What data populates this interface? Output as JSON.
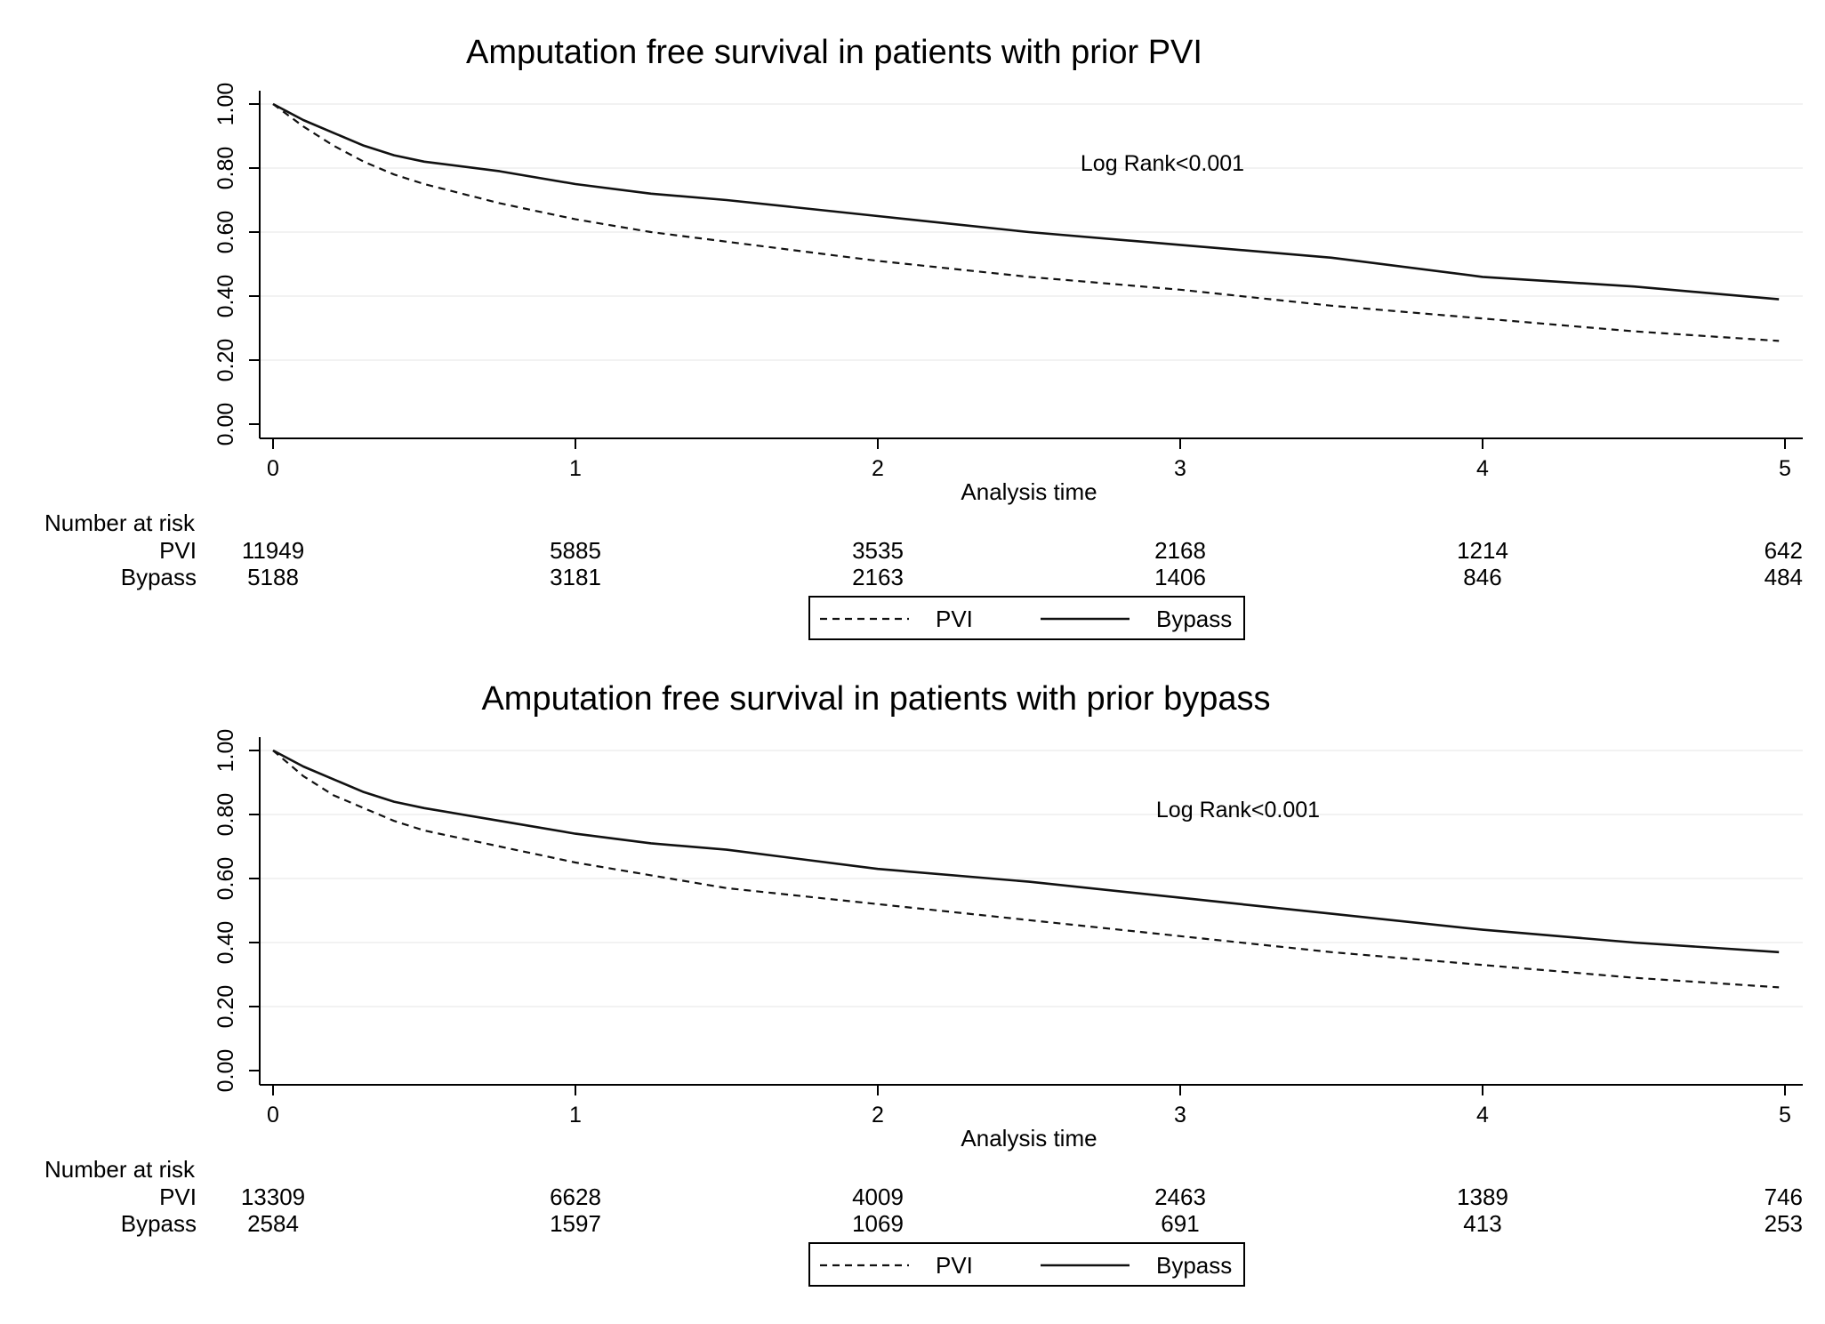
{
  "chart_data": [
    {
      "type": "line",
      "title": "Amputation free survival in patients with prior PVI",
      "xlabel": "Analysis time",
      "ylabel": "",
      "xlim": [
        0,
        5
      ],
      "ylim": [
        0,
        1
      ],
      "x_ticks": [
        "0",
        "1",
        "2",
        "3",
        "4",
        "5"
      ],
      "y_ticks": [
        "0.00",
        "0.20",
        "0.40",
        "0.60",
        "0.80",
        "1.00"
      ],
      "grid": true,
      "annotation": "Log Rank<0.001",
      "series": [
        {
          "name": "PVI",
          "style": "dashed",
          "x": [
            0,
            0.1,
            0.2,
            0.3,
            0.4,
            0.5,
            0.75,
            1,
            1.25,
            1.5,
            2,
            2.5,
            3,
            3.5,
            4,
            4.5,
            4.98
          ],
          "y": [
            1.0,
            0.93,
            0.87,
            0.82,
            0.78,
            0.75,
            0.69,
            0.64,
            0.6,
            0.57,
            0.51,
            0.46,
            0.42,
            0.37,
            0.33,
            0.29,
            0.26
          ]
        },
        {
          "name": "Bypass",
          "style": "solid",
          "x": [
            0,
            0.1,
            0.2,
            0.3,
            0.4,
            0.5,
            0.75,
            1,
            1.25,
            1.5,
            2,
            2.5,
            3,
            3.5,
            4,
            4.5,
            4.98
          ],
          "y": [
            1.0,
            0.95,
            0.91,
            0.87,
            0.84,
            0.82,
            0.79,
            0.75,
            0.72,
            0.7,
            0.65,
            0.6,
            0.56,
            0.52,
            0.46,
            0.43,
            0.39
          ]
        }
      ],
      "risk_table": {
        "header": "Number at risk",
        "rows": [
          {
            "label": "PVI",
            "values": [
              "11949",
              "5885",
              "3535",
              "2168",
              "1214",
              "642"
            ]
          },
          {
            "label": "Bypass",
            "values": [
              "5188",
              "3181",
              "2163",
              "1406",
              "846",
              "484"
            ]
          }
        ]
      },
      "legend": {
        "position": "bottom",
        "items": [
          "PVI",
          "Bypass"
        ]
      }
    },
    {
      "type": "line",
      "title": "Amputation free survival in patients with prior bypass",
      "xlabel": "Analysis time",
      "ylabel": "",
      "xlim": [
        0,
        5
      ],
      "ylim": [
        0,
        1
      ],
      "x_ticks": [
        "0",
        "1",
        "2",
        "3",
        "4",
        "5"
      ],
      "y_ticks": [
        "0.00",
        "0.20",
        "0.40",
        "0.60",
        "0.80",
        "1.00"
      ],
      "grid": true,
      "annotation": "Log Rank<0.001",
      "series": [
        {
          "name": "PVI",
          "style": "dashed",
          "x": [
            0,
            0.1,
            0.2,
            0.3,
            0.4,
            0.5,
            0.75,
            1,
            1.25,
            1.5,
            2,
            2.5,
            3,
            3.5,
            4,
            4.5,
            4.98
          ],
          "y": [
            1.0,
            0.92,
            0.86,
            0.82,
            0.78,
            0.75,
            0.7,
            0.65,
            0.61,
            0.57,
            0.52,
            0.47,
            0.42,
            0.37,
            0.33,
            0.29,
            0.26
          ]
        },
        {
          "name": "Bypass",
          "style": "solid",
          "x": [
            0,
            0.1,
            0.2,
            0.3,
            0.4,
            0.5,
            0.75,
            1,
            1.25,
            1.5,
            2,
            2.5,
            3,
            3.5,
            4,
            4.5,
            4.98
          ],
          "y": [
            1.0,
            0.95,
            0.91,
            0.87,
            0.84,
            0.82,
            0.78,
            0.74,
            0.71,
            0.69,
            0.63,
            0.59,
            0.54,
            0.49,
            0.44,
            0.4,
            0.37
          ]
        }
      ],
      "risk_table": {
        "header": "Number at risk",
        "rows": [
          {
            "label": "PVI",
            "values": [
              "13309",
              "6628",
              "4009",
              "2463",
              "1389",
              "746"
            ]
          },
          {
            "label": "Bypass",
            "values": [
              "2584",
              "1597",
              "1069",
              "691",
              "413",
              "253"
            ]
          }
        ]
      },
      "legend": {
        "position": "bottom",
        "items": [
          "PVI",
          "Bypass"
        ]
      }
    }
  ]
}
